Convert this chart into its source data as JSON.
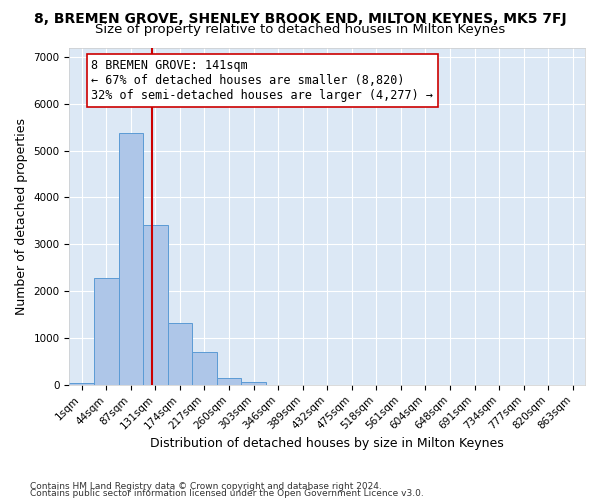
{
  "title": "8, BREMEN GROVE, SHENLEY BROOK END, MILTON KEYNES, MK5 7FJ",
  "subtitle": "Size of property relative to detached houses in Milton Keynes",
  "xlabel": "Distribution of detached houses by size in Milton Keynes",
  "ylabel": "Number of detached properties",
  "footer_line1": "Contains HM Land Registry data © Crown copyright and database right 2024.",
  "footer_line2": "Contains public sector information licensed under the Open Government Licence v3.0.",
  "bin_labels": [
    "1sqm",
    "44sqm",
    "87sqm",
    "131sqm",
    "174sqm",
    "217sqm",
    "260sqm",
    "303sqm",
    "346sqm",
    "389sqm",
    "432sqm",
    "475sqm",
    "518sqm",
    "561sqm",
    "604sqm",
    "648sqm",
    "691sqm",
    "734sqm",
    "777sqm",
    "820sqm",
    "863sqm"
  ],
  "bar_values": [
    50,
    2280,
    5380,
    3420,
    1310,
    700,
    155,
    60,
    5,
    2,
    1,
    0,
    0,
    0,
    0,
    0,
    0,
    0,
    0,
    0,
    0
  ],
  "bar_color": "#aec6e8",
  "bar_edgecolor": "#5b9bd5",
  "vline_x": 2.85,
  "vline_color": "#cc0000",
  "annotation_text": "8 BREMEN GROVE: 141sqm\n← 67% of detached houses are smaller (8,820)\n32% of semi-detached houses are larger (4,277) →",
  "annotation_box_color": "white",
  "annotation_box_edgecolor": "#cc0000",
  "ylim": [
    0,
    7200
  ],
  "yticks": [
    0,
    1000,
    2000,
    3000,
    4000,
    5000,
    6000,
    7000
  ],
  "background_color": "#dce8f5",
  "grid_color": "white",
  "title_fontsize": 10,
  "subtitle_fontsize": 9.5,
  "axis_label_fontsize": 9,
  "tick_fontsize": 7.5,
  "annotation_fontsize": 8.5,
  "footer_fontsize": 6.5
}
